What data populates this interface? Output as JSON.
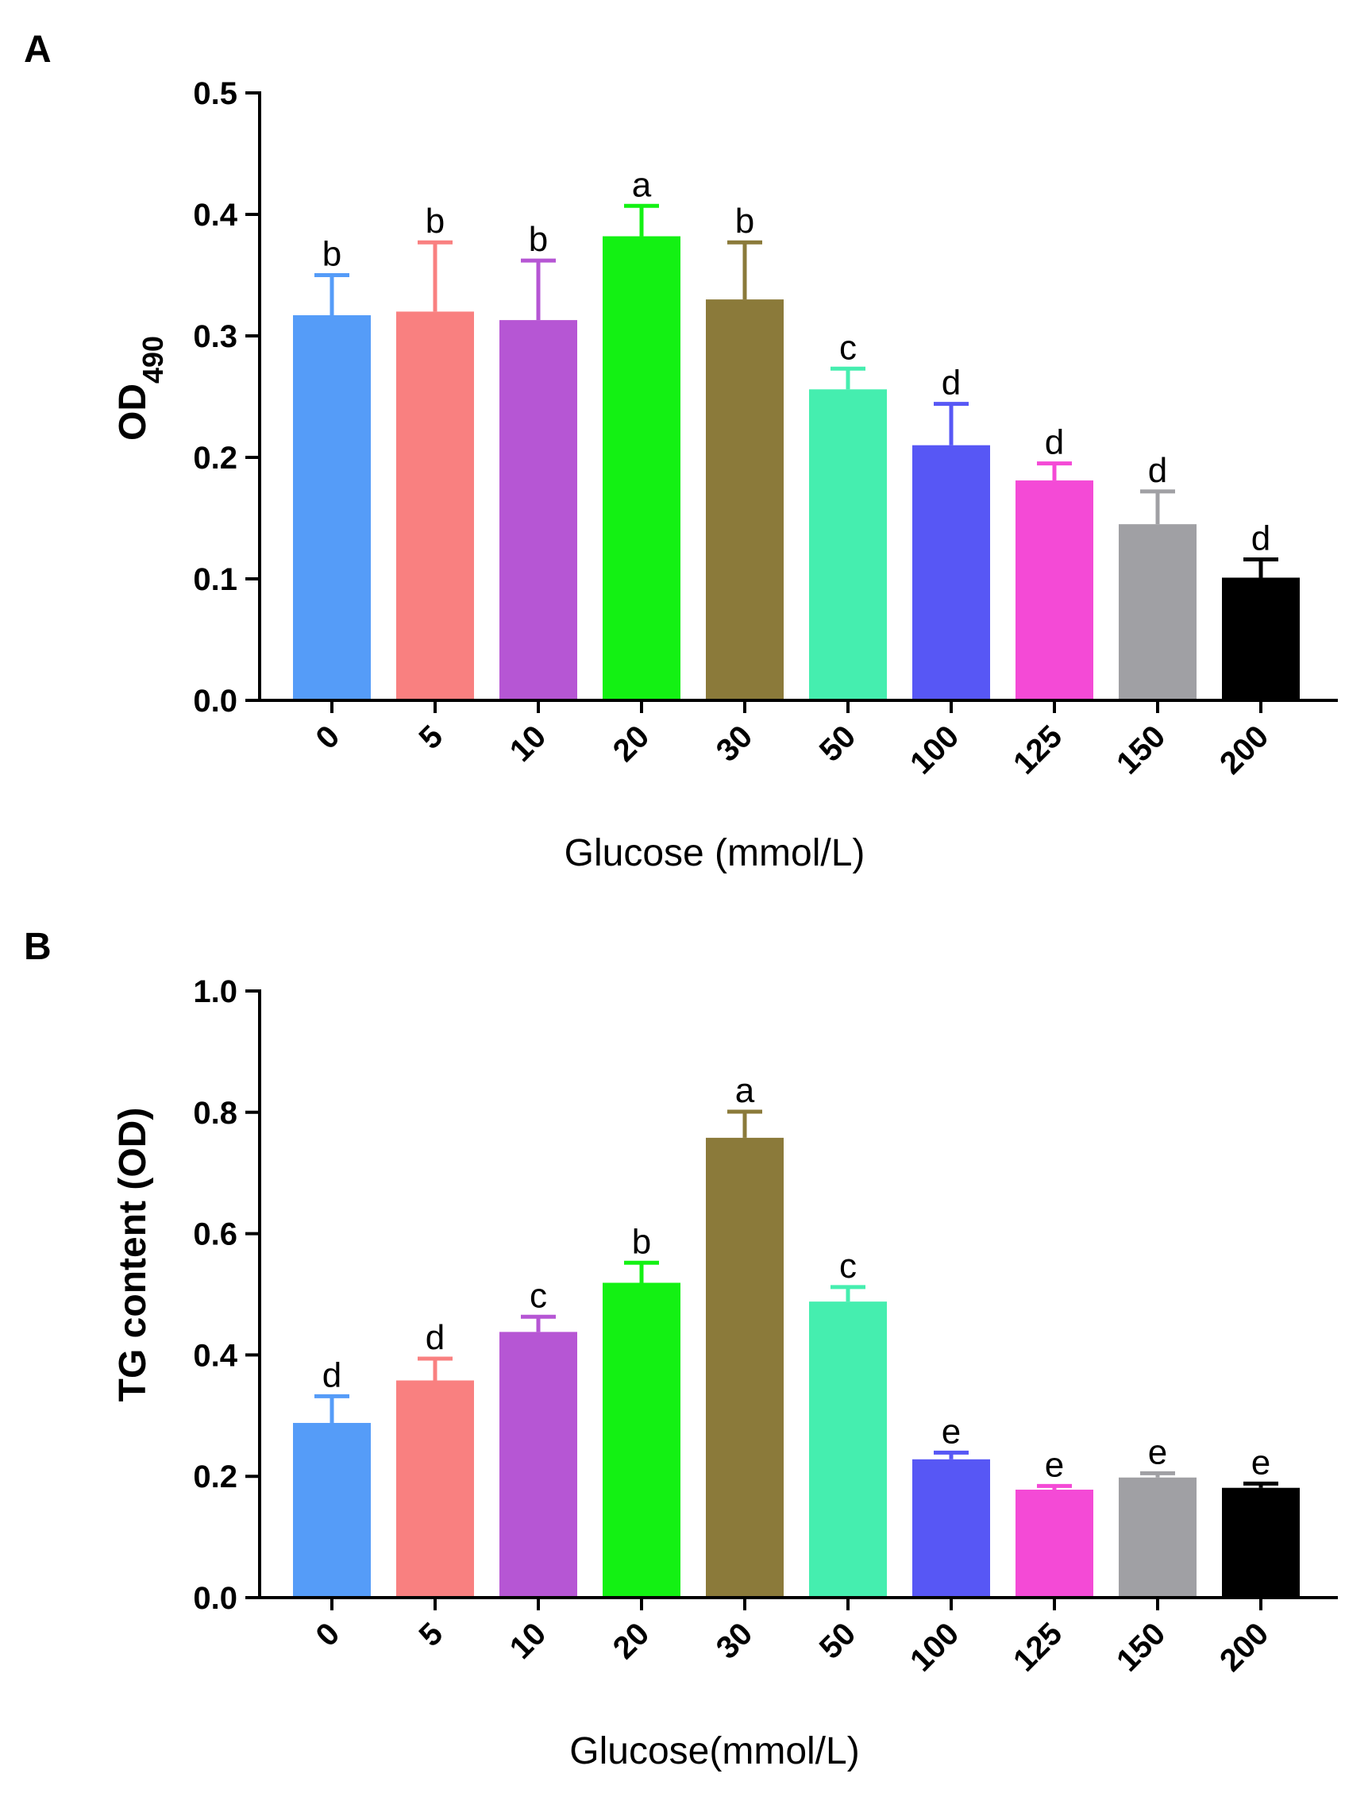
{
  "chart_data": [
    {
      "type": "bar",
      "panel": "A",
      "ylabel_main": "OD",
      "ylabel_sub": "490",
      "xlabel": "Glucose (mmol/L)",
      "ylim": [
        0,
        0.5
      ],
      "yticks": [
        "0.0",
        "0.1",
        "0.2",
        "0.3",
        "0.4",
        "0.5"
      ],
      "categories": [
        "0",
        "5",
        "10",
        "20",
        "30",
        "50",
        "100",
        "125",
        "150",
        "200"
      ],
      "values": [
        0.317,
        0.32,
        0.313,
        0.382,
        0.33,
        0.256,
        0.21,
        0.181,
        0.145,
        0.101
      ],
      "errors": [
        0.033,
        0.057,
        0.049,
        0.025,
        0.047,
        0.017,
        0.034,
        0.014,
        0.027,
        0.015
      ],
      "significance": [
        "b",
        "b",
        "b",
        "a",
        "b",
        "c",
        "d",
        "d",
        "d",
        "d"
      ],
      "colors": [
        "#559CF8",
        "#F98080",
        "#B656D4",
        "#13F113",
        "#8B7A3A",
        "#45EEAF",
        "#5757F5",
        "#F44AD6",
        "#A0A0A4",
        "#000000"
      ]
    },
    {
      "type": "bar",
      "panel": "B",
      "ylabel_main": "TG content (OD)",
      "xlabel": "Glucose(mmol/L)",
      "ylim": [
        0,
        1.0
      ],
      "yticks": [
        "0.0",
        "0.2",
        "0.4",
        "0.6",
        "0.8",
        "1.0"
      ],
      "categories": [
        "0",
        "5",
        "10",
        "20",
        "30",
        "50",
        "100",
        "125",
        "150",
        "200"
      ],
      "values": [
        0.288,
        0.358,
        0.438,
        0.519,
        0.758,
        0.488,
        0.228,
        0.178,
        0.198,
        0.181
      ],
      "errors": [
        0.044,
        0.036,
        0.025,
        0.033,
        0.043,
        0.024,
        0.011,
        0.006,
        0.007,
        0.007
      ],
      "significance": [
        "d",
        "d",
        "c",
        "b",
        "a",
        "c",
        "e",
        "e",
        "e",
        "e"
      ],
      "colors": [
        "#559CF8",
        "#F98080",
        "#B656D4",
        "#13F113",
        "#8B7A3A",
        "#45EEAF",
        "#5757F5",
        "#F44AD6",
        "#A0A0A4",
        "#000000"
      ]
    }
  ]
}
